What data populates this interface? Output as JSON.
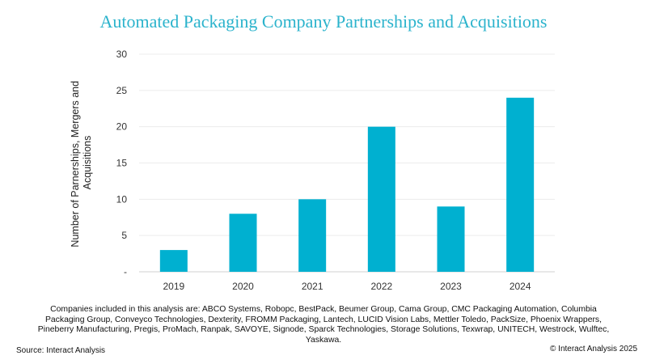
{
  "chart_data": {
    "type": "bar",
    "title": "Automated Packaging Company Partnerships and Acquisitions",
    "ylabel_lines": [
      "Number of Parnerships, Mergers and",
      "Acquisitions"
    ],
    "categories": [
      "2019",
      "2020",
      "2021",
      "2022",
      "2023",
      "2024"
    ],
    "values": [
      3,
      8,
      10,
      20,
      9,
      24
    ],
    "ylim": [
      0,
      30
    ],
    "yticks": [
      "-",
      "5",
      "10",
      "15",
      "20",
      "25",
      "30"
    ],
    "bar_color": "#00b0d0",
    "grid": true
  },
  "note": "Companies included in this analysis are: ABCO Systems, Robopc, BestPack, Beumer Group, Cama Group, CMC Packaging Automation, Columbia Packaging Group, Conveyco Technologies, Dexterity, FROMM Packaging, Lantech, LUCID Vision Labs, Mettler Toledo, PackSize, Phoenix Wrappers, Pineberry Manufacturing, Pregis, ProMach, Ranpak, SAVOYE, Signode, Sparck Technologies, Storage Solutions, Texwrap, UNITECH, Westrock, Wulftec, Yaskawa.",
  "source": "Source: Interact Analysis",
  "copyright": "© Interact Analysis 2025"
}
